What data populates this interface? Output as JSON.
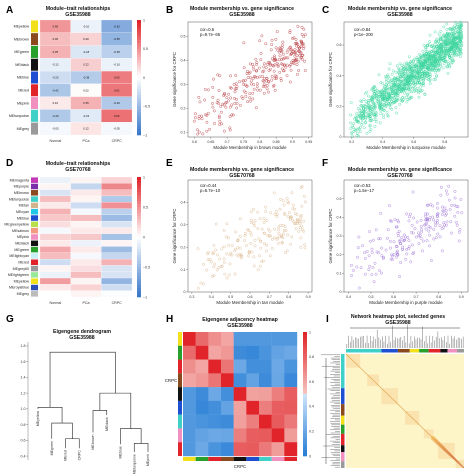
{
  "panels": {
    "A": {
      "letter": "A",
      "title": "Module–trait relationships",
      "subtitle": "GSE35988"
    },
    "B": {
      "letter": "B",
      "title": "Module membership vs. gene significance",
      "subtitle": "GSE35988",
      "stat1": "cor=0.6",
      "stat2": "p=9.7e−65"
    },
    "C": {
      "letter": "C",
      "title": "Module membership vs. gene significance",
      "subtitle": "GSE35988",
      "stat1": "cor=0.84",
      "stat2": "p<1e−200"
    },
    "D": {
      "letter": "D",
      "title": "Module–trait relationships",
      "subtitle": "GSE70768"
    },
    "E": {
      "letter": "E",
      "title": "Module membership vs. gene significance",
      "subtitle": "GSE70768",
      "stat1": "cor=0.44",
      "stat2": "p=5.7e−10"
    },
    "F": {
      "letter": "F",
      "title": "Module membership vs. gene significance",
      "subtitle": "GSE70768",
      "stat1": "cor=0.53",
      "stat2": "p=1.5e−17"
    },
    "G": {
      "letter": "G",
      "title": "Eigengene dendrogram",
      "subtitle": "GSE35988"
    },
    "H": {
      "letter": "H",
      "title": "Eigengene adjacency heatmap",
      "subtitle": "GSE35988",
      "ylabel": "CRPC",
      "xlabel": "CRPC"
    },
    "I": {
      "letter": "I",
      "title": "Network heatmap plot, selected genes",
      "subtitle": "GSE35988"
    }
  },
  "colors": {
    "neg": "#3a78c9",
    "mid": "#ffffff",
    "pos": "#e0242a",
    "grid": "#cccccc",
    "red_label": "#e0242a"
  },
  "chart_data": [
    {
      "panel": "A",
      "type": "heatmap",
      "title": "Module–trait relationships",
      "subtitle": "GSE35988",
      "rows": [
        "MEyellow",
        "MEbrown",
        "MEgreen",
        "MEblack",
        "MEblue",
        "MEred",
        "MEpink",
        "MEturquoise",
        "MEgrey"
      ],
      "row_colors": [
        "#f2e01b",
        "#8b4a1e",
        "#27a02c",
        "#111111",
        "#1f4fd1",
        "#e0242a",
        "#f08fc0",
        "#3fd0c8",
        "#9a9a9a"
      ],
      "columns": [
        "Normal",
        "PCa",
        "CRPC"
      ],
      "values": [
        [
          0.48,
          -0.1,
          -0.62
        ],
        [
          0.3,
          0.2,
          -0.55
        ],
        [
          0.35,
          -0.18,
          -0.35
        ],
        [
          -0.12,
          0.22,
          -0.1
        ],
        [
          -0.25,
          -0.38,
          0.6
        ],
        [
          -0.42,
          0.02,
          0.62
        ],
        [
          0.1,
          0.35,
          -0.4
        ],
        [
          -0.4,
          -0.15,
          0.65
        ],
        [
          -0.05,
          0.12,
          -0.05
        ]
      ],
      "colorbar_ticks": [
        "1",
        "0.5",
        "0",
        "−0.5",
        "−1"
      ]
    },
    {
      "panel": "B",
      "type": "scatter",
      "title": "Module membership vs. gene significance",
      "subtitle": "GSE35988",
      "xlabel": "Module Membership in brown module",
      "ylabel": "Gene significance for CRPC",
      "xlim": [
        0.58,
        0.96
      ],
      "ylim": [
        0.08,
        0.56
      ],
      "xticks": [
        0.6,
        0.65,
        0.7,
        0.75,
        0.8,
        0.85,
        0.9,
        0.95
      ],
      "yticks": [
        0.1,
        0.2,
        0.3,
        0.4,
        0.5
      ],
      "color": "#b5343a",
      "stats": [
        "cor=0.6",
        "p=9.7e−65"
      ],
      "fit": {
        "slope": 0.92,
        "intercept": -0.4,
        "spread": 0.055,
        "n": 300
      }
    },
    {
      "panel": "C",
      "type": "scatter",
      "title": "Module membership vs. gene significance",
      "subtitle": "GSE35988",
      "xlabel": "Module Membership in turquoise module",
      "ylabel": "Gene significance for CRPC",
      "xlim": [
        0.15,
        0.95
      ],
      "ylim": [
        0.0,
        0.75
      ],
      "xticks": [
        0.2,
        0.4,
        0.6,
        0.8
      ],
      "yticks": [
        0.0,
        0.2,
        0.4,
        0.6
      ],
      "color": "#3fd6a0",
      "stats": [
        "cor=0.84",
        "p<1e−200"
      ],
      "fit": {
        "slope": 0.78,
        "intercept": -0.06,
        "spread": 0.06,
        "n": 1400
      }
    },
    {
      "panel": "D",
      "type": "heatmap",
      "title": "Module–trait relationships",
      "subtitle": "GSE70768",
      "rows": [
        "MEmagenta",
        "MEpurple",
        "MEbrown",
        "MEturquoise",
        "MEtan",
        "MEcyan",
        "MEblue",
        "MEgreenyellow",
        "MEsalmon",
        "MEpink",
        "MEblack",
        "MEgreen",
        "MElightcyan",
        "MEred",
        "MEgrey60",
        "MElightgreen",
        "MEyellow",
        "MEroyalblue",
        "MEgrey"
      ],
      "row_colors": [
        "#c23ab8",
        "#7b2fa8",
        "#8b4a1e",
        "#3fd0c8",
        "#d2b48c",
        "#22c7e8",
        "#1f4fd1",
        "#b8e04a",
        "#f59a82",
        "#f08fc0",
        "#111111",
        "#27a02c",
        "#c8f0f5",
        "#e0242a",
        "#999999",
        "#98e89a",
        "#f2e01b",
        "#2d4fb8",
        "#bbbbbb"
      ],
      "columns": [
        "Normal",
        "PCa",
        "CRPC"
      ],
      "values": [
        [
          -0.1,
          0.05,
          0.2
        ],
        [
          0.05,
          -0.3,
          0.55
        ],
        [
          -0.2,
          0.1,
          0.3
        ],
        [
          0.3,
          0.05,
          -0.4
        ],
        [
          0.1,
          -0.25,
          0.5
        ],
        [
          0.35,
          -0.05,
          -0.35
        ],
        [
          0.25,
          0.3,
          -0.5
        ],
        [
          0.15,
          0.05,
          -0.2
        ],
        [
          -0.05,
          0.1,
          0.1
        ],
        [
          0.2,
          0.25,
          -0.45
        ],
        [
          0.1,
          -0.1,
          0.05
        ],
        [
          0.4,
          0.1,
          -0.5
        ],
        [
          0.3,
          -0.05,
          -0.3
        ],
        [
          -0.25,
          0.1,
          0.35
        ],
        [
          0.05,
          0.15,
          -0.2
        ],
        [
          -0.1,
          0.3,
          -0.2
        ],
        [
          0.45,
          0.05,
          -0.55
        ],
        [
          0.1,
          0.2,
          -0.25
        ],
        [
          0.0,
          0.05,
          -0.02
        ]
      ],
      "colorbar_ticks": [
        "1",
        "0.5",
        "0",
        "−0.5",
        "−1"
      ]
    },
    {
      "panel": "E",
      "type": "scatter",
      "title": "Module membership vs. gene significance",
      "subtitle": "GSE70768",
      "xlabel": "Module Membership in tan module",
      "ylabel": "Gene significance for CRPC",
      "xlim": [
        0.28,
        0.92
      ],
      "ylim": [
        0.0,
        0.5
      ],
      "xticks": [
        0.3,
        0.4,
        0.5,
        0.6,
        0.7,
        0.8,
        0.9
      ],
      "yticks": [
        0.0,
        0.1,
        0.2,
        0.3,
        0.4
      ],
      "color": "#d9b48a",
      "stats": [
        "cor=0.44",
        "p=5.7e−10"
      ],
      "fit": {
        "slope": 0.45,
        "intercept": -0.05,
        "spread": 0.07,
        "n": 200
      }
    },
    {
      "panel": "F",
      "type": "scatter",
      "title": "Module membership vs. gene significance",
      "subtitle": "GSE70768",
      "xlabel": "Module Membership in purple module",
      "ylabel": "Gene significance for CRPC",
      "xlim": [
        0.38,
        0.93
      ],
      "ylim": [
        0.0,
        0.6
      ],
      "xticks": [
        0.4,
        0.5,
        0.6,
        0.7,
        0.8,
        0.9
      ],
      "yticks": [
        0.0,
        0.1,
        0.2,
        0.3,
        0.4,
        0.5
      ],
      "color": "#9b6fd6",
      "stats": [
        "cor=0.53",
        "p=1.5e−17"
      ],
      "fit": {
        "slope": 0.6,
        "intercept": -0.1,
        "spread": 0.08,
        "n": 200
      }
    },
    {
      "panel": "G",
      "type": "dendrogram",
      "title": "Eigengene dendrogram",
      "subtitle": "GSE35988",
      "yticks": [
        "1.8",
        "1.6",
        "1.4",
        "1.2",
        "1.0",
        "0.8",
        "0.6",
        "0.4"
      ],
      "ylim": [
        0.35,
        1.85
      ],
      "leaves": [
        "MEyellow",
        "MEgreen",
        "MEred",
        "CRPC",
        "MEbrown",
        "MEblack",
        "MEblue",
        "MEturquoise",
        "MEpink"
      ],
      "highlight_leaf": "CRPC"
    },
    {
      "panel": "H",
      "type": "heatmap",
      "title": "Eigengene adjacency heatmap",
      "subtitle": "GSE35988",
      "side_colors": [
        "#f2e01b",
        "#27a02c",
        "#e0242a",
        "#8b4a1e",
        "#111111",
        "#1f4fd1",
        "#3fd0c8",
        "#f08fc0",
        "#e0242a"
      ],
      "colorbar_ticks": [
        "1",
        "0.8",
        "0.6",
        "0.4",
        "0.2",
        "0"
      ]
    },
    {
      "panel": "I",
      "type": "heatmap",
      "title": "Network heatmap plot, selected genes",
      "subtitle": "GSE35988",
      "module_colors": [
        "#3fd0c8",
        "#1f4fd1",
        "#8b4a1e",
        "#f2e01b",
        "#27a02c",
        "#e0242a",
        "#111111",
        "#f08fc0",
        "#9a9a9a"
      ]
    }
  ]
}
